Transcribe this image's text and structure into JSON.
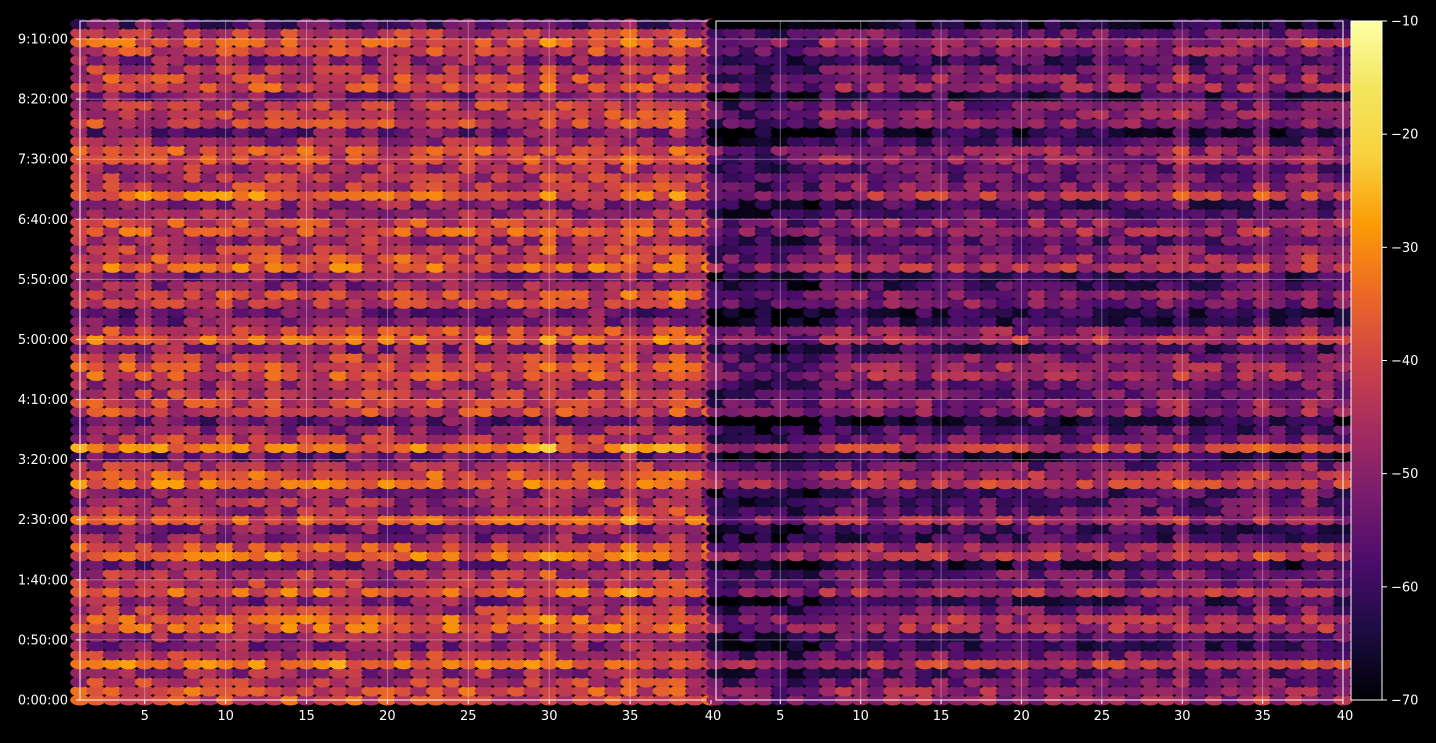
{
  "chart_data": {
    "type": "heatmap",
    "title": "",
    "subtitle": "",
    "xlabel": "",
    "ylabel": "",
    "grid": true,
    "colormap": "inferno",
    "background": "#000000",
    "grid_color": "#ffffff",
    "panels": [
      {
        "x_range": [
          1,
          40
        ],
        "x_ticks": [
          "5",
          "10",
          "15",
          "20",
          "25",
          "30",
          "35"
        ],
        "x_edge_label": "40",
        "y_range_minutes": [
          0,
          565
        ],
        "y_ticks": [
          "0:00:00",
          "0:50:00",
          "1:40:00",
          "2:30:00",
          "3:20:00",
          "4:10:00",
          "5:00:00",
          "5:50:00",
          "6:40:00",
          "7:30:00",
          "8:20:00",
          "9:10:00"
        ],
        "baseline_dB": -44,
        "variation_dB": 8
      },
      {
        "x_range": [
          1,
          40
        ],
        "x_ticks": [
          "5",
          "10",
          "15",
          "20",
          "25",
          "30",
          "35"
        ],
        "x_edge_label": "40",
        "y_range_minutes": [
          0,
          565
        ],
        "baseline_dB": -53,
        "variation_dB": 7
      }
    ],
    "row_interval_minutes": 7.5,
    "hot_columns": [
      30,
      35,
      38
    ],
    "colorbar": {
      "label": "",
      "range": [
        -70,
        -10
      ],
      "ticks": [
        "−10",
        "−20",
        "−30",
        "−40",
        "−50",
        "−60",
        "−70"
      ]
    }
  }
}
